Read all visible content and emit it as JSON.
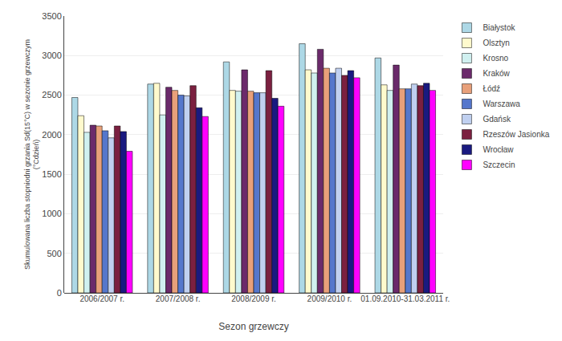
{
  "chart_data": {
    "type": "bar",
    "categories": [
      "2006/2007 r.",
      "2007/2008 r.",
      "2008/2009 r.",
      "2009/2010 r.",
      "01.09.2010-31.03.2011 r."
    ],
    "series": [
      {
        "name": "Białystok",
        "color": "#add8e6",
        "values": [
          2470,
          2640,
          2920,
          3150,
          2970
        ]
      },
      {
        "name": "Olsztyn",
        "color": "#fffacd",
        "values": [
          2240,
          2650,
          2560,
          2820,
          2630
        ]
      },
      {
        "name": "Krosno",
        "color": "#d0f0f0",
        "values": [
          2030,
          2250,
          2550,
          2780,
          2560
        ]
      },
      {
        "name": "Kraków",
        "color": "#6b2a6b",
        "values": [
          2120,
          2600,
          2820,
          3080,
          2880
        ]
      },
      {
        "name": "Łódź",
        "color": "#e8a07a",
        "values": [
          2110,
          2560,
          2550,
          2840,
          2580
        ]
      },
      {
        "name": "Warszawa",
        "color": "#5577cc",
        "values": [
          2050,
          2500,
          2530,
          2780,
          2580
        ]
      },
      {
        "name": "Gdańsk",
        "color": "#c0d0f0",
        "values": [
          1960,
          2490,
          2530,
          2840,
          2640
        ]
      },
      {
        "name": "Rzeszów Jasionka",
        "color": "#7b2040",
        "values": [
          2110,
          2620,
          2810,
          2750,
          2620
        ]
      },
      {
        "name": "Wrocław",
        "color": "#1a1a80",
        "values": [
          2040,
          2340,
          2460,
          2810,
          2650
        ]
      },
      {
        "name": "Szczecin",
        "color": "#ff00ff",
        "values": [
          1790,
          2230,
          2360,
          2720,
          2560
        ]
      }
    ],
    "xlabel": "Sezon grzewczy",
    "ylabel": "Skumulowana liczba stopniodni grzania Sd(15°C) w sezonie grzewczym\n(°Cdzień)",
    "ylim": [
      0,
      3500
    ],
    "yticks": [
      0,
      500,
      1000,
      1500,
      2000,
      2500,
      3000,
      3500
    ],
    "grid": true,
    "legend": "right"
  }
}
